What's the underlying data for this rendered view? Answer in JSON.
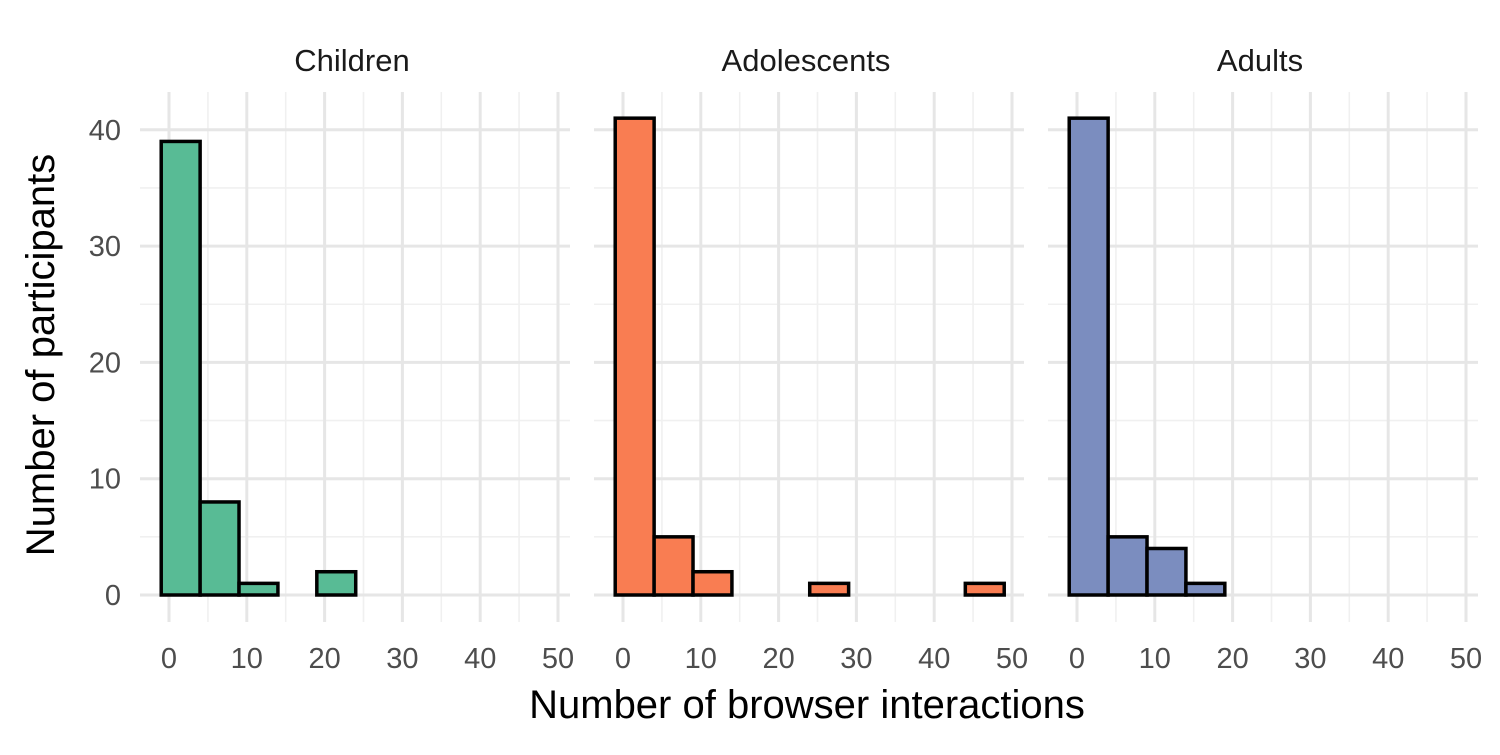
{
  "chart_data": {
    "type": "bar",
    "xlabel": "Number of browser interactions",
    "ylabel": "Number of participants",
    "xlim": [
      -3,
      52
    ],
    "ylim": [
      -2,
      42
    ],
    "x_ticks": [
      0,
      10,
      20,
      30,
      40,
      50
    ],
    "y_ticks": [
      0,
      10,
      20,
      30,
      40
    ],
    "grid": true,
    "legend": "none",
    "bin_width": 5,
    "bin_starts": [
      -1,
      4,
      9,
      14,
      19,
      24,
      29,
      34,
      39,
      44
    ],
    "panels": [
      {
        "title": "Children",
        "color": "#58BB95",
        "values": [
          39,
          8,
          1,
          0,
          2,
          0,
          0,
          0,
          0,
          0
        ]
      },
      {
        "title": "Adolescents",
        "color": "#F97D52",
        "values": [
          41,
          5,
          2,
          0,
          0,
          1,
          0,
          0,
          0,
          1
        ]
      },
      {
        "title": "Adults",
        "color": "#7B8DBF",
        "values": [
          41,
          5,
          4,
          1,
          0,
          0,
          0,
          0,
          0,
          0
        ]
      }
    ]
  }
}
